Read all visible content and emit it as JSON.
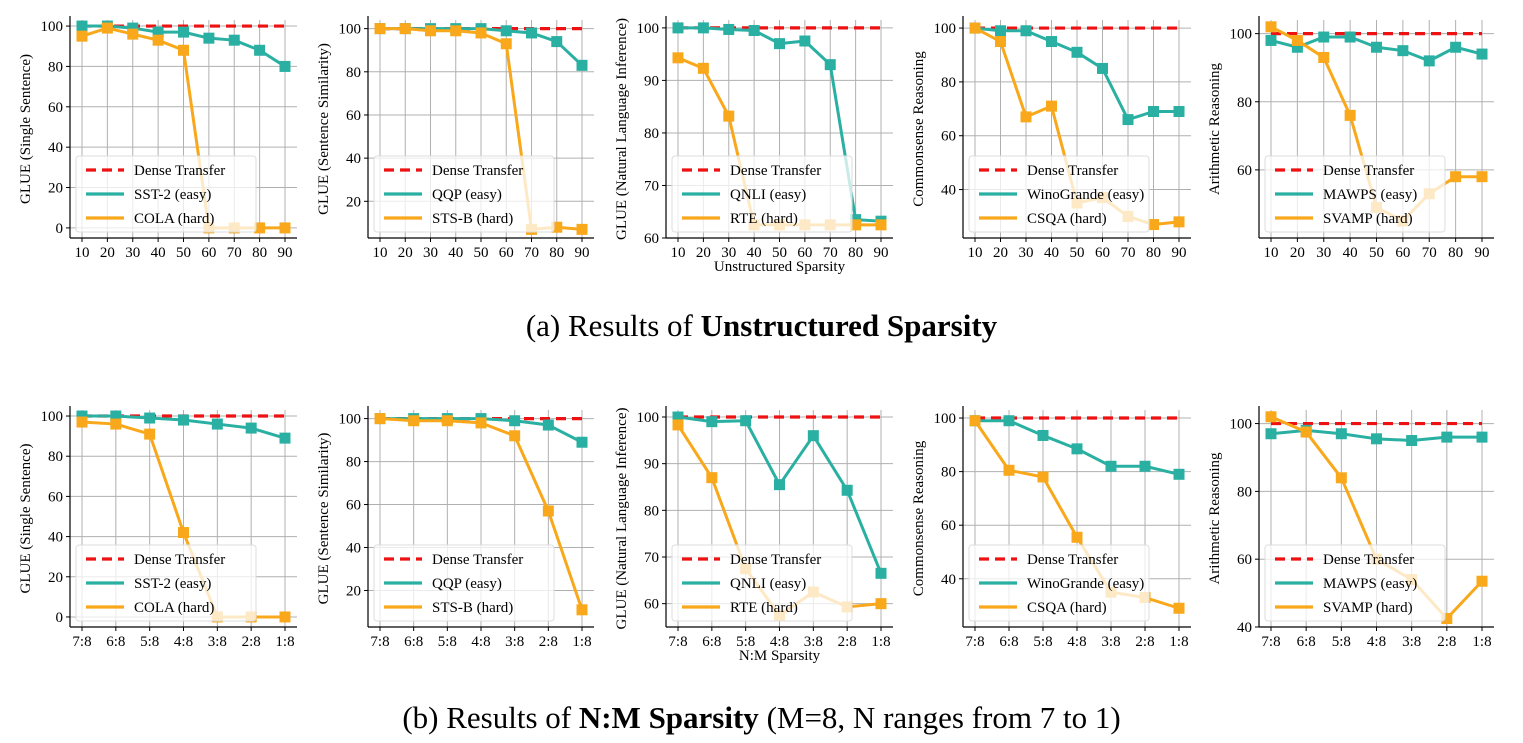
{
  "captions": {
    "a": {
      "prefix": "(a)",
      "text": "Results of ",
      "bold": "Unstructured Sparsity",
      "suffix": ""
    },
    "b": {
      "prefix": "(b)",
      "text": "Results of ",
      "bold": "N:M Sparsity",
      "suffix": " (M=8, N ranges from 7 to 1)"
    }
  },
  "colors": {
    "dense": "#ee1111",
    "easy": "#2ab0a2",
    "hard": "#f8a81a",
    "grid": "#b0b0b0"
  },
  "chart_data": [
    {
      "type": "line",
      "row": "a",
      "ylabel": "GLUE (Single Sentence)",
      "xlabel": "",
      "categories": [
        "10",
        "20",
        "30",
        "40",
        "50",
        "60",
        "70",
        "80",
        "90"
      ],
      "ylim": [
        -5,
        103
      ],
      "yticks": [
        0,
        20,
        40,
        60,
        80,
        100
      ],
      "grid": true,
      "legend_position": "lower-left",
      "series": [
        {
          "name": "Dense Transfer",
          "style": "dense",
          "values": [
            100,
            100,
            100,
            100,
            100,
            100,
            100,
            100,
            100
          ]
        },
        {
          "name": "SST-2 (easy)",
          "style": "easy",
          "values": [
            100,
            100,
            99,
            97,
            97,
            94,
            93,
            88,
            80
          ]
        },
        {
          "name": "COLA (hard)",
          "style": "hard",
          "values": [
            95,
            99,
            96,
            93,
            88,
            0,
            0,
            0,
            0
          ]
        }
      ]
    },
    {
      "type": "line",
      "row": "a",
      "ylabel": "GLUE (Sentence Similarity)",
      "xlabel": "",
      "categories": [
        "10",
        "20",
        "30",
        "40",
        "50",
        "60",
        "70",
        "80",
        "90"
      ],
      "ylim": [
        3,
        104
      ],
      "yticks": [
        20,
        40,
        60,
        80,
        100
      ],
      "grid": true,
      "legend_position": "lower-left",
      "series": [
        {
          "name": "Dense Transfer",
          "style": "dense",
          "values": [
            100,
            100,
            100,
            100,
            100,
            100,
            100,
            100,
            100
          ]
        },
        {
          "name": "QQP (easy)",
          "style": "easy",
          "values": [
            100,
            100,
            100,
            100,
            100,
            99,
            98,
            94,
            83
          ]
        },
        {
          "name": "STS-B (hard)",
          "style": "hard",
          "values": [
            100,
            100,
            99,
            99,
            98,
            93,
            7,
            8,
            7
          ]
        }
      ]
    },
    {
      "type": "line",
      "row": "a",
      "ylabel": "GLUE (Natural Language Inference)",
      "xlabel": "Unstructured Sparsity",
      "categories": [
        "10",
        "20",
        "30",
        "40",
        "50",
        "60",
        "70",
        "80",
        "90"
      ],
      "ylim": [
        60,
        101.5
      ],
      "yticks": [
        60,
        70,
        80,
        90,
        100
      ],
      "grid": true,
      "legend_position": "lower-left",
      "series": [
        {
          "name": "Dense Transfer",
          "style": "dense",
          "values": [
            100,
            100,
            100,
            100,
            100,
            100,
            100,
            100,
            100
          ]
        },
        {
          "name": "QNLI (easy)",
          "style": "easy",
          "values": [
            100,
            100,
            99.7,
            99.5,
            97,
            97.5,
            93,
            63.5,
            63.2
          ]
        },
        {
          "name": "RTE (hard)",
          "style": "hard",
          "values": [
            94.3,
            92.3,
            83.2,
            62.5,
            62.5,
            62.5,
            62.5,
            62.5,
            62.5
          ]
        }
      ]
    },
    {
      "type": "line",
      "row": "a",
      "ylabel": "Commonsense Reasoning",
      "xlabel": "",
      "categories": [
        "10",
        "20",
        "30",
        "40",
        "50",
        "60",
        "70",
        "80",
        "90"
      ],
      "ylim": [
        22,
        103
      ],
      "yticks": [
        40,
        60,
        80,
        100
      ],
      "grid": true,
      "legend_position": "lower-left",
      "series": [
        {
          "name": "Dense Transfer",
          "style": "dense",
          "values": [
            100,
            100,
            100,
            100,
            100,
            100,
            100,
            100,
            100
          ]
        },
        {
          "name": "WinoGrande (easy)",
          "style": "easy",
          "values": [
            100,
            99,
            99,
            95,
            91,
            85,
            66,
            69,
            69
          ]
        },
        {
          "name": "CSQA (hard)",
          "style": "hard",
          "values": [
            100,
            95,
            67,
            71,
            35,
            37,
            30,
            27,
            28
          ]
        }
      ]
    },
    {
      "type": "line",
      "row": "a",
      "ylabel": "Arithmetic Reasoning",
      "xlabel": "",
      "categories": [
        "10",
        "20",
        "30",
        "40",
        "50",
        "60",
        "70",
        "80",
        "90"
      ],
      "ylim": [
        40,
        104
      ],
      "yticks": [
        60,
        80,
        100
      ],
      "grid": true,
      "legend_position": "lower-left",
      "series": [
        {
          "name": "Dense Transfer",
          "style": "dense",
          "values": [
            100,
            100,
            100,
            100,
            100,
            100,
            100,
            100,
            100
          ]
        },
        {
          "name": "MAWPS (easy)",
          "style": "easy",
          "values": [
            98,
            96,
            99,
            99,
            96,
            95,
            92,
            96,
            94
          ]
        },
        {
          "name": "SVAMP (hard)",
          "style": "hard",
          "values": [
            102,
            98,
            93,
            76,
            49,
            45,
            53,
            58,
            58
          ]
        }
      ]
    },
    {
      "type": "line",
      "row": "b",
      "ylabel": "GLUE (Single Sentence)",
      "xlabel": "",
      "categories": [
        "7:8",
        "6:8",
        "5:8",
        "4:8",
        "3:8",
        "2:8",
        "1:8"
      ],
      "ylim": [
        -5,
        103
      ],
      "yticks": [
        0,
        20,
        40,
        60,
        80,
        100
      ],
      "grid": true,
      "legend_position": "lower-left",
      "series": [
        {
          "name": "Dense Transfer",
          "style": "dense",
          "values": [
            100,
            100,
            100,
            100,
            100,
            100,
            100
          ]
        },
        {
          "name": "SST-2 (easy)",
          "style": "easy",
          "values": [
            100,
            100,
            99,
            98,
            96,
            94,
            89
          ]
        },
        {
          "name": "COLA (hard)",
          "style": "hard",
          "values": [
            97,
            96,
            91,
            42,
            0,
            0,
            0
          ]
        }
      ]
    },
    {
      "type": "line",
      "row": "b",
      "ylabel": "GLUE (Sentence Similarity)",
      "xlabel": "",
      "categories": [
        "7:8",
        "6:8",
        "5:8",
        "4:8",
        "3:8",
        "2:8",
        "1:8"
      ],
      "ylim": [
        3,
        104
      ],
      "yticks": [
        20,
        40,
        60,
        80,
        100
      ],
      "grid": true,
      "legend_position": "lower-left",
      "series": [
        {
          "name": "Dense Transfer",
          "style": "dense",
          "values": [
            100,
            100,
            100,
            100,
            100,
            100,
            100
          ]
        },
        {
          "name": "QQP (easy)",
          "style": "easy",
          "values": [
            100,
            100,
            100,
            100,
            99,
            97,
            89
          ]
        },
        {
          "name": "STS-B (hard)",
          "style": "hard",
          "values": [
            100,
            99,
            99,
            98,
            92,
            57,
            11
          ]
        }
      ]
    },
    {
      "type": "line",
      "row": "b",
      "ylabel": "GLUE (Natural Language Inference)",
      "xlabel": "N:M Sparsity",
      "categories": [
        "7:8",
        "6:8",
        "5:8",
        "4:8",
        "3:8",
        "2:8",
        "1:8"
      ],
      "ylim": [
        55,
        101.5
      ],
      "yticks": [
        60,
        70,
        80,
        90,
        100
      ],
      "grid": true,
      "legend_position": "lower-left",
      "series": [
        {
          "name": "Dense Transfer",
          "style": "dense",
          "values": [
            100,
            100,
            100,
            100,
            100,
            100,
            100
          ]
        },
        {
          "name": "QNLI (easy)",
          "style": "easy",
          "values": [
            100,
            99,
            99.2,
            85.5,
            96,
            84.3,
            66.5
          ]
        },
        {
          "name": "RTE (hard)",
          "style": "hard",
          "values": [
            98.3,
            87,
            67.5,
            57.5,
            62.5,
            59.3,
            60
          ]
        }
      ]
    },
    {
      "type": "line",
      "row": "b",
      "ylabel": "Commonsense Reasoning",
      "xlabel": "",
      "categories": [
        "7:8",
        "6:8",
        "5:8",
        "4:8",
        "3:8",
        "2:8",
        "1:8"
      ],
      "ylim": [
        22,
        103
      ],
      "yticks": [
        40,
        60,
        80,
        100
      ],
      "grid": true,
      "legend_position": "lower-left",
      "series": [
        {
          "name": "Dense Transfer",
          "style": "dense",
          "values": [
            100,
            100,
            100,
            100,
            100,
            100,
            100
          ]
        },
        {
          "name": "WinoGrande (easy)",
          "style": "easy",
          "values": [
            99,
            99,
            93.5,
            88.5,
            82,
            82,
            79
          ]
        },
        {
          "name": "CSQA (hard)",
          "style": "hard",
          "values": [
            99,
            80.5,
            78,
            55.5,
            35,
            33,
            29
          ]
        }
      ]
    },
    {
      "type": "line",
      "row": "b",
      "ylabel": "Arithmetic Reasoning",
      "xlabel": "",
      "categories": [
        "7:8",
        "6:8",
        "5:8",
        "4:8",
        "3:8",
        "2:8",
        "1:8"
      ],
      "ylim": [
        40,
        104
      ],
      "yticks": [
        40,
        60,
        80,
        100
      ],
      "grid": true,
      "legend_position": "lower-left",
      "series": [
        {
          "name": "Dense Transfer",
          "style": "dense",
          "values": [
            100,
            100,
            100,
            100,
            100,
            100,
            100
          ]
        },
        {
          "name": "MAWPS (easy)",
          "style": "easy",
          "values": [
            97,
            98,
            97,
            95.5,
            95,
            96,
            96
          ]
        },
        {
          "name": "SVAMP (hard)",
          "style": "hard",
          "values": [
            102,
            97.5,
            84,
            60,
            54,
            42.5,
            53.5
          ]
        }
      ]
    }
  ]
}
